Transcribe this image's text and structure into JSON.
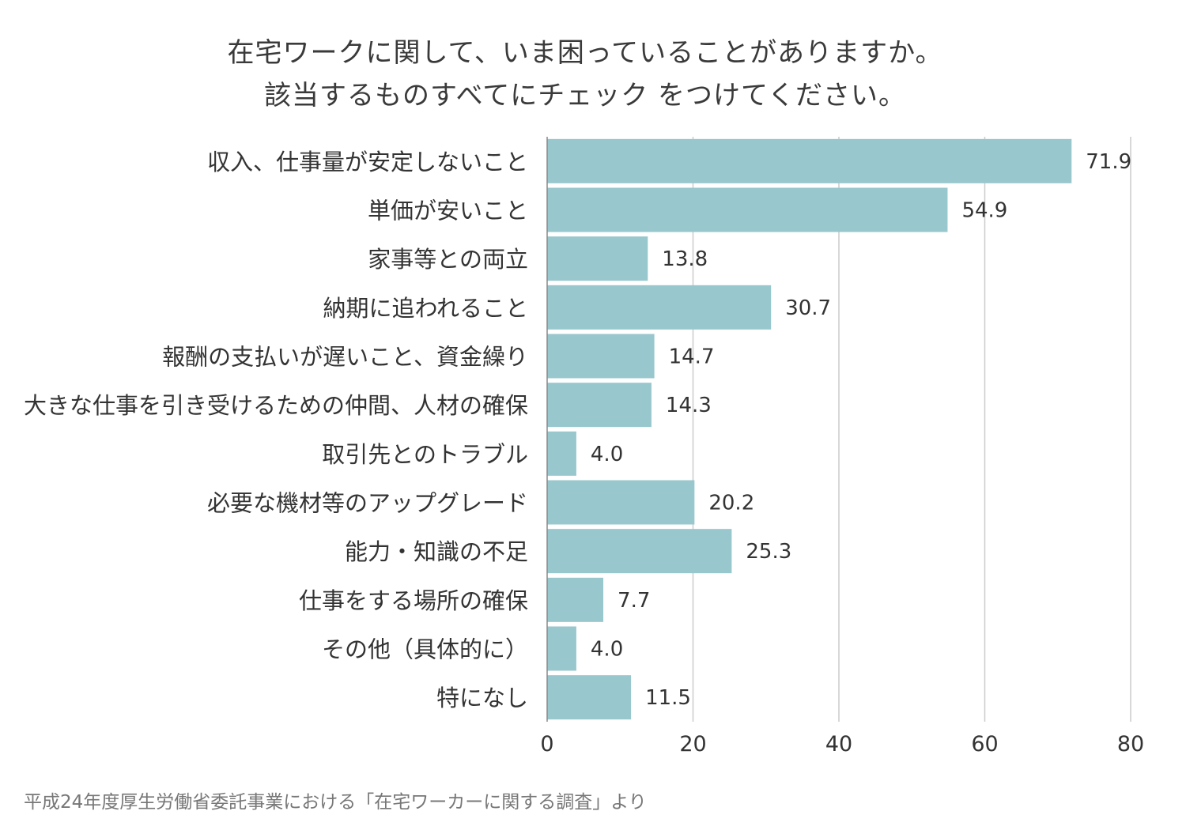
{
  "title_line1": "在宅ワークに関して、いま困っていることがありますか。",
  "title_line2": "該当するものすべてにチェック をつけてください。",
  "source": "平成24年度厚生労働省委託事業における「在宅ワーカーに関する調査」より",
  "colors": {
    "bar": "#98c7cd",
    "grid": "#cccccc",
    "axis": "#888888",
    "text": "#333333"
  },
  "chart_data": {
    "type": "bar",
    "orientation": "horizontal",
    "categories": [
      "収入、仕事量が安定しないこと",
      "単価が安いこと",
      "家事等との両立",
      "納期に追われること",
      "報酬の支払いが遅いこと、資金繰り",
      "大きな仕事を引き受けるための仲間、人材の確保",
      "取引先とのトラブル",
      "必要な機材等のアップグレード",
      "能力・知識の不足",
      "仕事をする場所の確保",
      "その他（具体的に）",
      "特になし"
    ],
    "values": [
      71.9,
      54.9,
      13.8,
      30.7,
      14.7,
      14.3,
      4.0,
      20.2,
      25.3,
      7.7,
      4.0,
      11.5
    ],
    "value_labels": [
      "71.9",
      "54.9",
      "13.8",
      "30.7",
      "14.7",
      "14.3",
      "4.0",
      "20.2",
      "25.3",
      "7.7",
      "4.0",
      "11.5"
    ],
    "xlim": [
      0,
      80
    ],
    "xticks": [
      0,
      20,
      40,
      60,
      80
    ],
    "xtick_labels": [
      "0",
      "20",
      "40",
      "60",
      "80"
    ],
    "grid": true,
    "legend": false
  }
}
